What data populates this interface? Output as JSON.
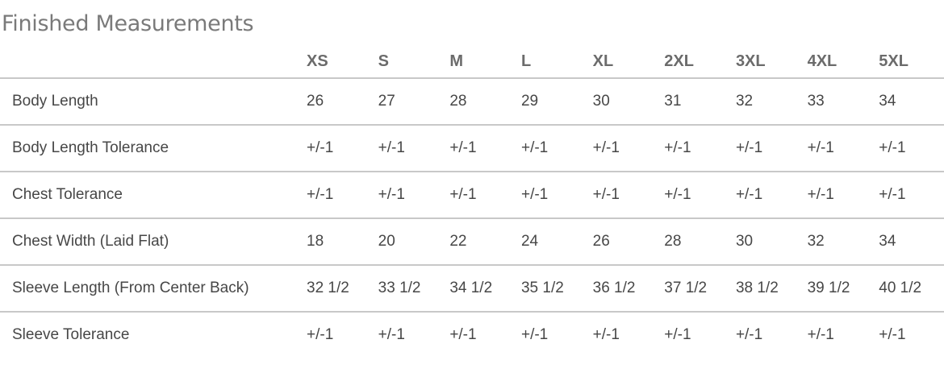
{
  "title": "Finished Measurements",
  "sizes": [
    "XS",
    "S",
    "M",
    "L",
    "XL",
    "2XL",
    "3XL",
    "4XL",
    "5XL"
  ],
  "rows": [
    {
      "label": "Body Length",
      "values": [
        "26",
        "27",
        "28",
        "29",
        "30",
        "31",
        "32",
        "33",
        "34"
      ]
    },
    {
      "label": "Body Length Tolerance",
      "values": [
        "+/-1",
        "+/-1",
        "+/-1",
        "+/-1",
        "+/-1",
        "+/-1",
        "+/-1",
        "+/-1",
        "+/-1"
      ]
    },
    {
      "label": "Chest Tolerance",
      "values": [
        "+/-1",
        "+/-1",
        "+/-1",
        "+/-1",
        "+/-1",
        "+/-1",
        "+/-1",
        "+/-1",
        "+/-1"
      ]
    },
    {
      "label": "Chest Width (Laid Flat)",
      "values": [
        "18",
        "20",
        "22",
        "24",
        "26",
        "28",
        "30",
        "32",
        "34"
      ]
    },
    {
      "label": "Sleeve Length (From Center Back)",
      "values": [
        "32 1/2",
        "33 1/2",
        "34 1/2",
        "35 1/2",
        "36 1/2",
        "37 1/2",
        "38 1/2",
        "39 1/2",
        "40 1/2"
      ]
    },
    {
      "label": "Sleeve Tolerance",
      "values": [
        "+/-1",
        "+/-1",
        "+/-1",
        "+/-1",
        "+/-1",
        "+/-1",
        "+/-1",
        "+/-1",
        "+/-1"
      ]
    }
  ],
  "colors": {
    "title": "#7a7a7a",
    "header": "#6b6b6b",
    "text": "#474747",
    "rule": "#c8c8c8"
  }
}
